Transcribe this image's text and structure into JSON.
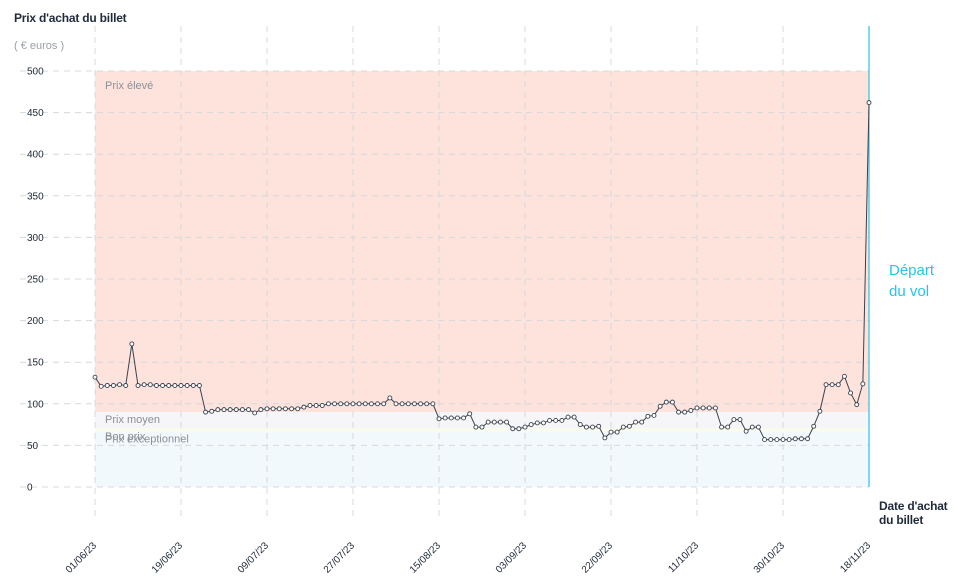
{
  "chart_data": {
    "type": "line",
    "ylabel": "Prix d'achat du billet",
    "yunit": "( € euros )",
    "xlabel": "Date d'achat du billet",
    "ylim": [
      0,
      500
    ],
    "yticks": [
      0,
      50,
      100,
      150,
      200,
      250,
      300,
      350,
      400,
      450,
      500
    ],
    "x_start": "01/06/23",
    "x_end": "18/11/23",
    "xticks": [
      "01/06/23",
      "19/06/23",
      "09/07/23",
      "27/07/23",
      "15/08/23",
      "03/09/23",
      "22/09/23",
      "11/10/23",
      "30/10/23",
      "18/11/23"
    ],
    "zones": [
      {
        "label": "Prix élevé",
        "from": 90,
        "to": 500,
        "color": "#fde3dc"
      },
      {
        "label": "Prix moyen",
        "from": 70,
        "to": 90,
        "color": "#f6f6f8"
      },
      {
        "label": "Bon prix",
        "from": 67,
        "to": 70,
        "color": "#fbfbe9"
      },
      {
        "label": "Prix exceptionnel",
        "from": 0,
        "to": 67,
        "color": "#f2f9fd"
      }
    ],
    "event": {
      "label": "Départ du vol",
      "color": "#29c4e0"
    },
    "grid": true,
    "series": [
      {
        "color": "#3a4250",
        "values": [
          132,
          121,
          122,
          122,
          123,
          122,
          172,
          122,
          123,
          123,
          122,
          122,
          122,
          122,
          122,
          122,
          122,
          122,
          90,
          91,
          93,
          93,
          93,
          93,
          93,
          93,
          89,
          93,
          94,
          94,
          94,
          94,
          94,
          94,
          96,
          98,
          98,
          98,
          100,
          100,
          100,
          100,
          100,
          100,
          100,
          100,
          100,
          100,
          107,
          100,
          100,
          100,
          100,
          100,
          100,
          100,
          82,
          83,
          83,
          83,
          83,
          88,
          72,
          72,
          78,
          78,
          78,
          78,
          70,
          70,
          72,
          75,
          77,
          77,
          80,
          80,
          80,
          84,
          84,
          75,
          72,
          72,
          73,
          59,
          66,
          66,
          72,
          73,
          78,
          78,
          85,
          86,
          97,
          102,
          102,
          90,
          90,
          92,
          95,
          95,
          95,
          95,
          72,
          72,
          81,
          81,
          67,
          72,
          72,
          57,
          57,
          57,
          57,
          57,
          58,
          58,
          58,
          73,
          91,
          123,
          123,
          123,
          133,
          113,
          99,
          124,
          462
        ]
      }
    ]
  }
}
